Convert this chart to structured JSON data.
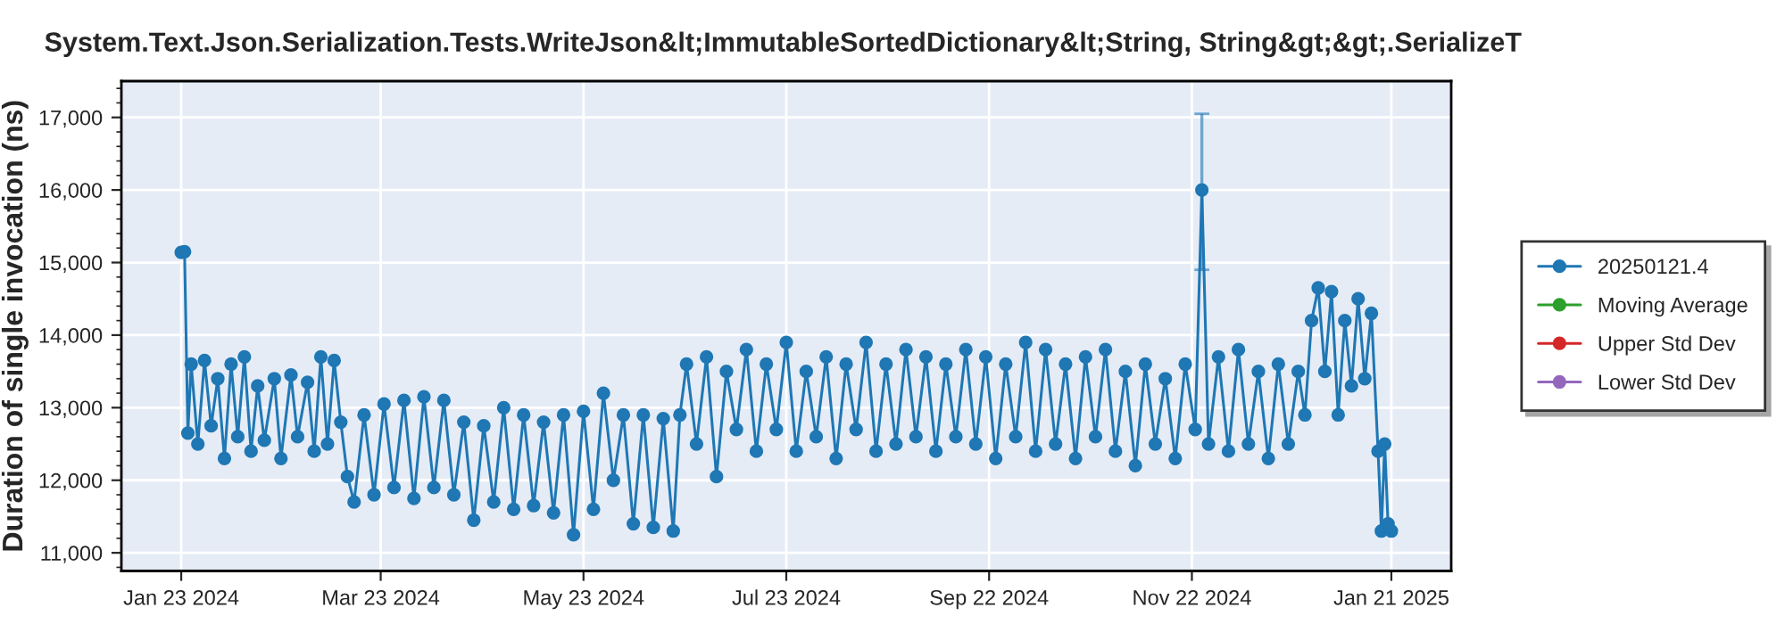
{
  "chart_data": {
    "type": "line",
    "title": "System.Text.Json.Serialization.Tests.WriteJson&lt;ImmutableSortedDictionary&lt;String, String&gt;&gt;.SerializeT",
    "ylabel": "Duration of single invocation (ns)",
    "xlim": [
      "2024-01-05",
      "2025-02-08"
    ],
    "xticks": [
      {
        "value": "2024-01-23",
        "label": "Jan 23 2024"
      },
      {
        "value": "2024-03-23",
        "label": "Mar 23 2024"
      },
      {
        "value": "2024-05-23",
        "label": "May 23 2024"
      },
      {
        "value": "2024-07-23",
        "label": "Jul 23 2024"
      },
      {
        "value": "2024-09-22",
        "label": "Sep 22 2024"
      },
      {
        "value": "2024-11-22",
        "label": "Nov 22 2024"
      },
      {
        "value": "2025-01-21",
        "label": "Jan 21 2025"
      }
    ],
    "ylim": [
      10750,
      17500
    ],
    "yticks": [
      {
        "value": 11000,
        "label": "11,000"
      },
      {
        "value": 12000,
        "label": "12,000"
      },
      {
        "value": 13000,
        "label": "13,000"
      },
      {
        "value": 14000,
        "label": "14,000"
      },
      {
        "value": 15000,
        "label": "15,000"
      },
      {
        "value": 16000,
        "label": "16,000"
      },
      {
        "value": 17000,
        "label": "17,000"
      }
    ],
    "grid": true,
    "legend": "right",
    "marker": "circle",
    "line_style": "solid",
    "series": [
      {
        "name": "20250121.4",
        "color": "#1f77b4",
        "x": [
          "2024-01-23",
          "2024-01-24",
          "2024-01-25",
          "2024-01-26",
          "2024-01-28",
          "2024-01-30",
          "2024-02-01",
          "2024-02-03",
          "2024-02-05",
          "2024-02-07",
          "2024-02-09",
          "2024-02-11",
          "2024-02-13",
          "2024-02-15",
          "2024-02-17",
          "2024-02-20",
          "2024-02-22",
          "2024-02-25",
          "2024-02-27",
          "2024-03-01",
          "2024-03-03",
          "2024-03-05",
          "2024-03-07",
          "2024-03-09",
          "2024-03-11",
          "2024-03-13",
          "2024-03-15",
          "2024-03-18",
          "2024-03-21",
          "2024-03-24",
          "2024-03-27",
          "2024-03-30",
          "2024-04-02",
          "2024-04-05",
          "2024-04-08",
          "2024-04-11",
          "2024-04-14",
          "2024-04-17",
          "2024-04-20",
          "2024-04-23",
          "2024-04-26",
          "2024-04-29",
          "2024-05-02",
          "2024-05-05",
          "2024-05-08",
          "2024-05-11",
          "2024-05-14",
          "2024-05-17",
          "2024-05-20",
          "2024-05-23",
          "2024-05-26",
          "2024-05-29",
          "2024-06-01",
          "2024-06-04",
          "2024-06-07",
          "2024-06-10",
          "2024-06-13",
          "2024-06-16",
          "2024-06-19",
          "2024-06-21",
          "2024-06-23",
          "2024-06-26",
          "2024-06-29",
          "2024-07-02",
          "2024-07-05",
          "2024-07-08",
          "2024-07-11",
          "2024-07-14",
          "2024-07-17",
          "2024-07-20",
          "2024-07-23",
          "2024-07-26",
          "2024-07-29",
          "2024-08-01",
          "2024-08-04",
          "2024-08-07",
          "2024-08-10",
          "2024-08-13",
          "2024-08-16",
          "2024-08-19",
          "2024-08-22",
          "2024-08-25",
          "2024-08-28",
          "2024-08-31",
          "2024-09-03",
          "2024-09-06",
          "2024-09-09",
          "2024-09-12",
          "2024-09-15",
          "2024-09-18",
          "2024-09-21",
          "2024-09-24",
          "2024-09-27",
          "2024-09-30",
          "2024-10-03",
          "2024-10-06",
          "2024-10-09",
          "2024-10-12",
          "2024-10-15",
          "2024-10-18",
          "2024-10-21",
          "2024-10-24",
          "2024-10-27",
          "2024-10-30",
          "2024-11-02",
          "2024-11-05",
          "2024-11-08",
          "2024-11-11",
          "2024-11-14",
          "2024-11-17",
          "2024-11-20",
          "2024-11-23",
          "2024-11-25",
          "2024-11-27",
          "2024-11-30",
          "2024-12-03",
          "2024-12-06",
          "2024-12-09",
          "2024-12-12",
          "2024-12-15",
          "2024-12-18",
          "2024-12-21",
          "2024-12-24",
          "2024-12-26",
          "2024-12-28",
          "2024-12-30",
          "2025-01-01",
          "2025-01-03",
          "2025-01-05",
          "2025-01-07",
          "2025-01-09",
          "2025-01-11",
          "2025-01-13",
          "2025-01-15",
          "2025-01-17",
          "2025-01-18",
          "2025-01-19",
          "2025-01-20",
          "2025-01-21"
        ],
        "values": [
          15140,
          15150,
          12650,
          13600,
          12500,
          13650,
          12750,
          13400,
          12300,
          13600,
          12600,
          13700,
          12400,
          13300,
          12550,
          13400,
          12300,
          13450,
          12600,
          13350,
          12400,
          13700,
          12500,
          13650,
          12800,
          12050,
          11700,
          12900,
          11800,
          13050,
          11900,
          13100,
          11750,
          13150,
          11900,
          13100,
          11800,
          12800,
          11450,
          12750,
          11700,
          13000,
          11600,
          12900,
          11650,
          12800,
          11550,
          12900,
          11250,
          12950,
          11600,
          13200,
          12000,
          12900,
          11400,
          12900,
          11350,
          12850,
          11300,
          12900,
          13600,
          12500,
          13700,
          12050,
          13500,
          12700,
          13800,
          12400,
          13600,
          12700,
          13900,
          12400,
          13500,
          12600,
          13700,
          12300,
          13600,
          12700,
          13900,
          12400,
          13600,
          12500,
          13800,
          12600,
          13700,
          12400,
          13600,
          12600,
          13800,
          12500,
          13700,
          12300,
          13600,
          12600,
          13900,
          12400,
          13800,
          12500,
          13600,
          12300,
          13700,
          12600,
          13800,
          12400,
          13500,
          12200,
          13600,
          12500,
          13400,
          12300,
          13600,
          12700,
          16000,
          12500,
          13700,
          12400,
          13800,
          12500,
          13500,
          12300,
          13600,
          12500,
          13500,
          12900,
          14200,
          14650,
          13500,
          14600,
          12900,
          14200,
          13300,
          14500,
          13400,
          14300,
          12400,
          11300,
          12500,
          11400,
          11300
        ],
        "errors": [
          null,
          null,
          null,
          null,
          null,
          null,
          null,
          null,
          null,
          null,
          null,
          null,
          null,
          null,
          null,
          null,
          null,
          null,
          null,
          null,
          null,
          null,
          null,
          null,
          null,
          null,
          null,
          null,
          null,
          null,
          null,
          null,
          null,
          null,
          null,
          null,
          null,
          null,
          null,
          null,
          null,
          null,
          null,
          null,
          null,
          null,
          null,
          null,
          null,
          null,
          null,
          null,
          null,
          null,
          null,
          null,
          null,
          null,
          null,
          null,
          null,
          null,
          null,
          null,
          null,
          null,
          null,
          null,
          null,
          null,
          null,
          null,
          null,
          null,
          null,
          null,
          null,
          null,
          null,
          null,
          null,
          null,
          null,
          null,
          null,
          null,
          null,
          null,
          null,
          null,
          null,
          null,
          null,
          null,
          null,
          null,
          null,
          null,
          null,
          null,
          null,
          null,
          null,
          null,
          null,
          null,
          null,
          null,
          null,
          null,
          null,
          null,
          [
            14900,
            17050
          ],
          null,
          null,
          null,
          null,
          null,
          null,
          null,
          null,
          null,
          null,
          null,
          null,
          null,
          null,
          null,
          null,
          null,
          null,
          null,
          null,
          null,
          null,
          null,
          null,
          null,
          null
        ]
      },
      {
        "name": "Moving Average",
        "color": "#2ca02c"
      },
      {
        "name": "Upper Std Dev",
        "color": "#d62728"
      },
      {
        "name": "Lower Std Dev",
        "color": "#9467bd"
      }
    ]
  }
}
